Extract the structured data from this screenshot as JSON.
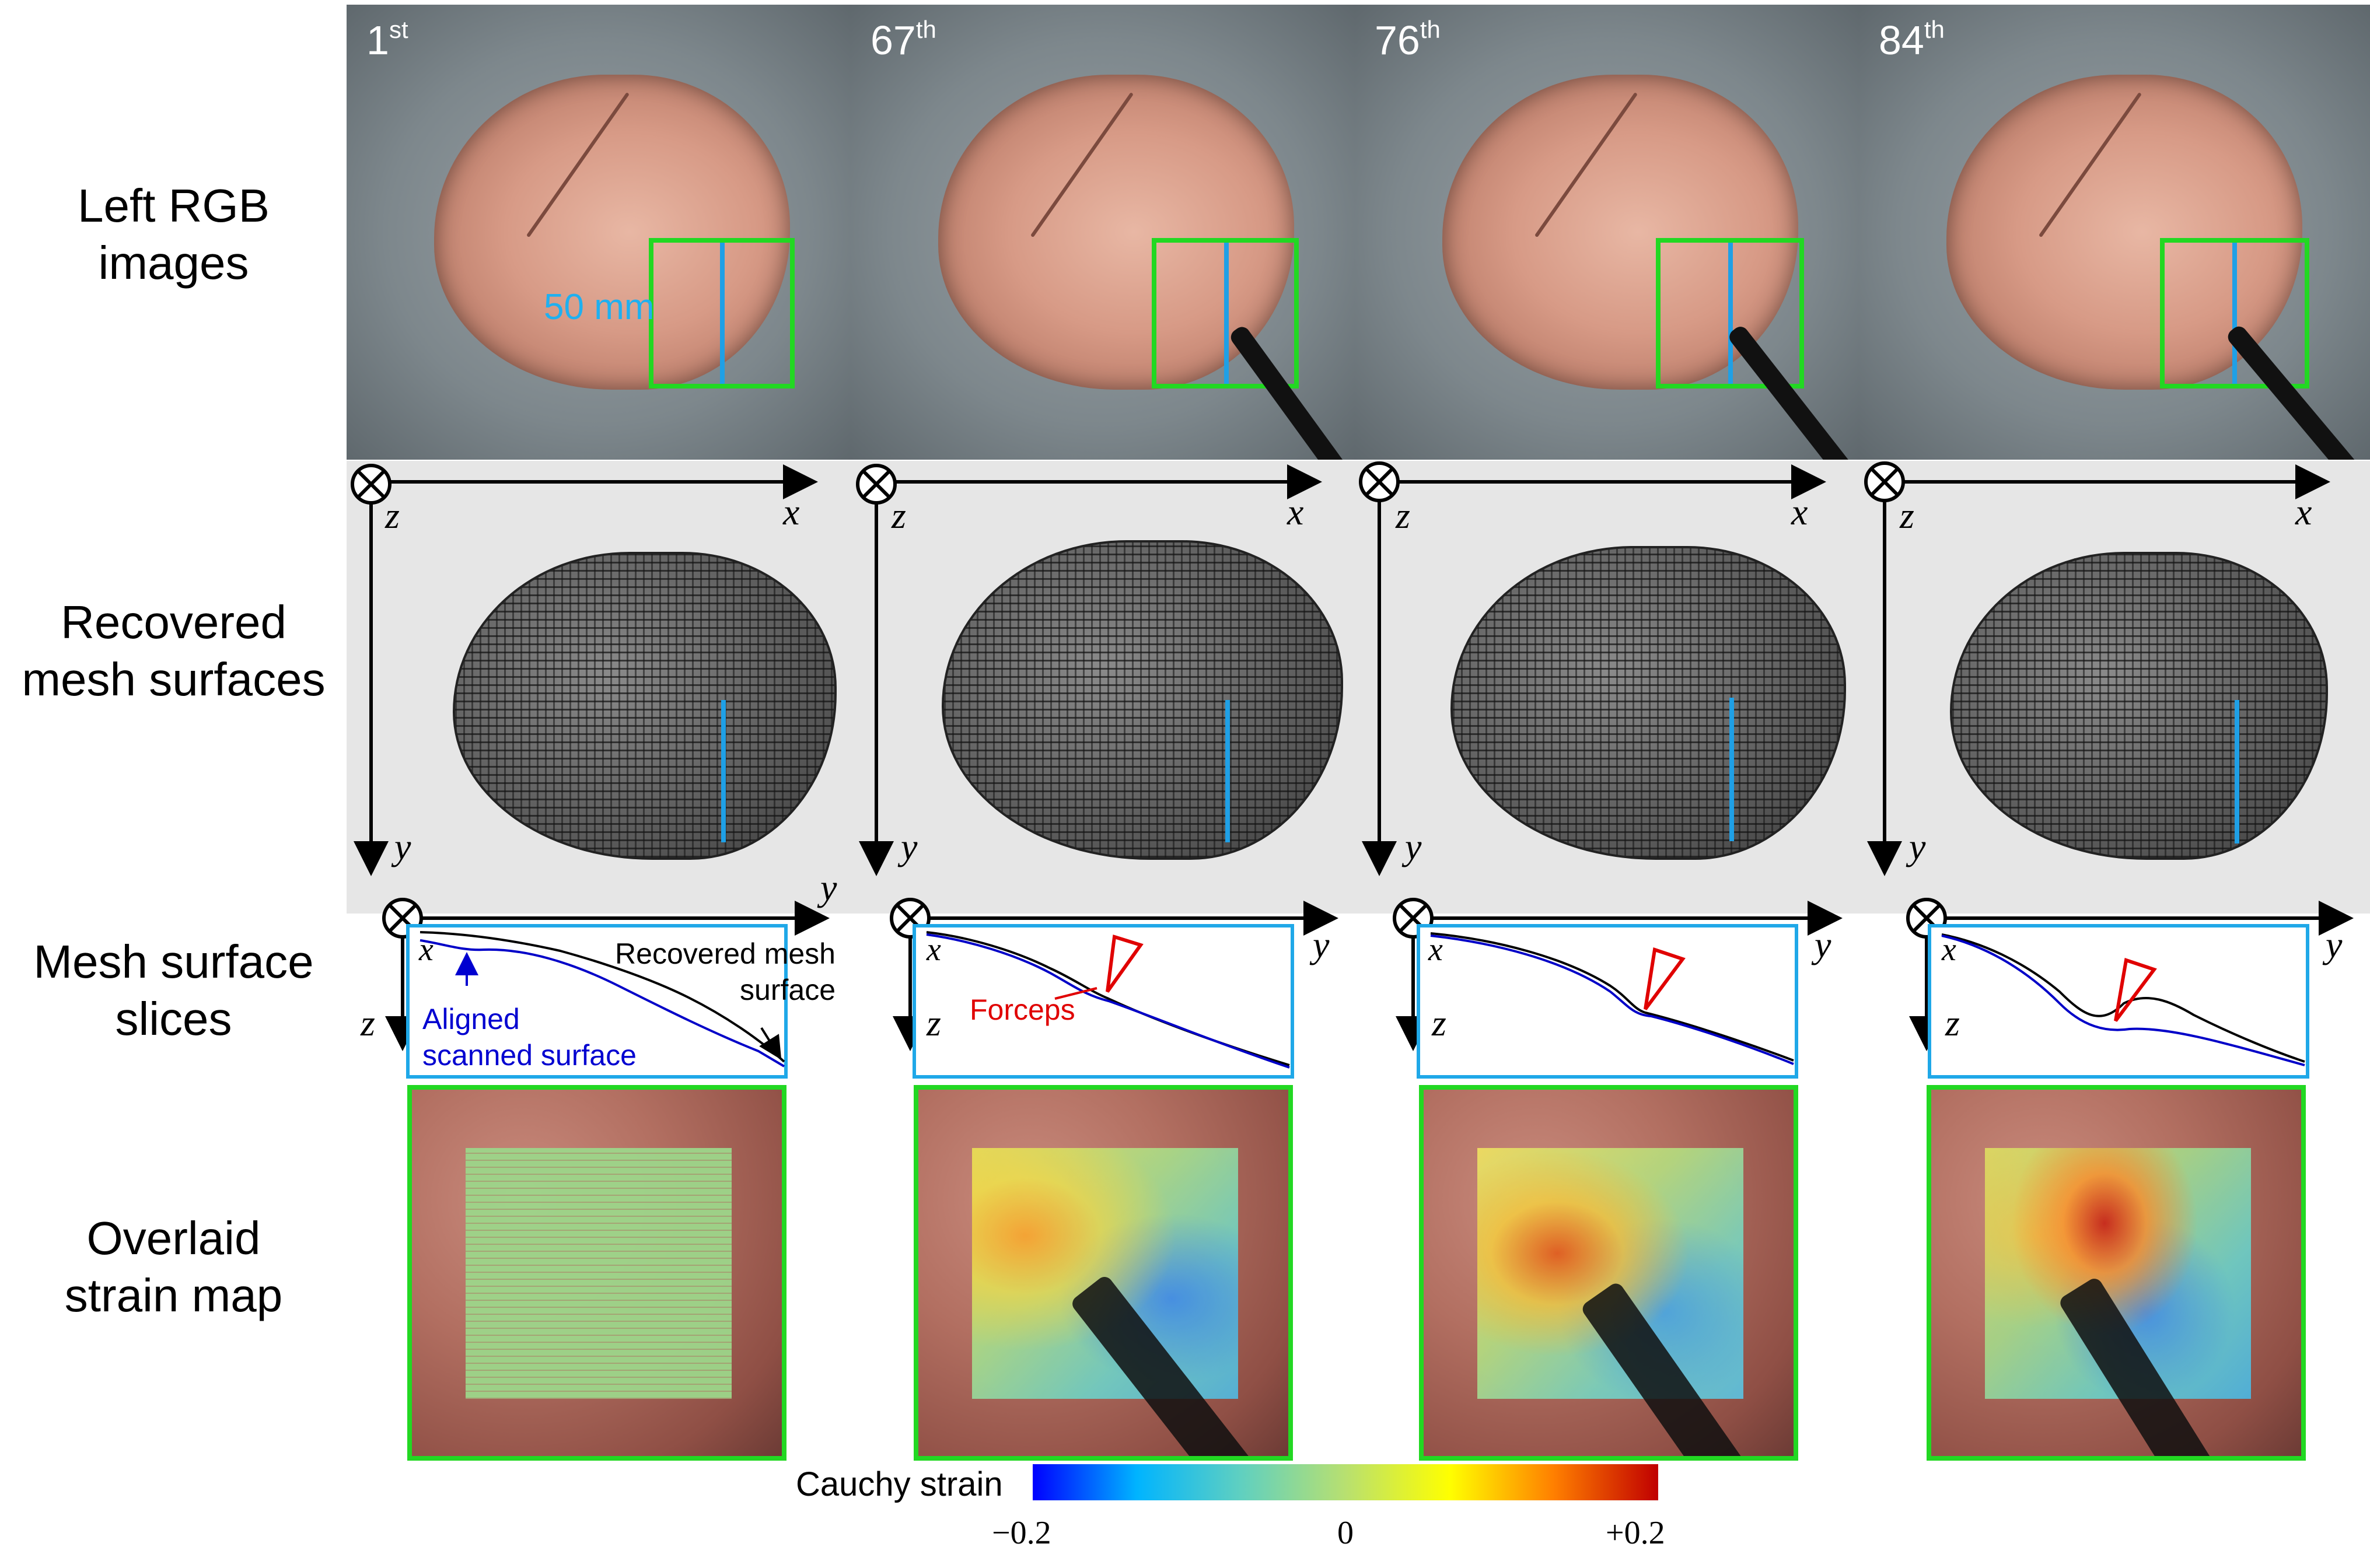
{
  "rows": {
    "rgb": "Left RGB images",
    "mesh": "Recovered mesh surfaces",
    "slices": "Mesh surface slices",
    "strain": "Overlaid strain map"
  },
  "frames": [
    {
      "num": "1",
      "suffix": "st"
    },
    {
      "num": "67",
      "suffix": "th"
    },
    {
      "num": "76",
      "suffix": "th"
    },
    {
      "num": "84",
      "suffix": "th"
    }
  ],
  "annotations": {
    "scale": "50 mm",
    "recovered_line1": "Recovered mesh",
    "recovered_line2": "surface",
    "aligned_line1": "Aligned",
    "aligned_line2": "scanned surface",
    "forceps": "Forceps"
  },
  "axes": {
    "x": "x",
    "y": "y",
    "z": "z"
  },
  "colorbar": {
    "title": "Cauchy strain",
    "min_label": "−0.2",
    "mid_label": "0",
    "max_label": "+0.2",
    "colors": [
      "#0000ff",
      "#00b4ff",
      "#60d0c0",
      "#b8e070",
      "#ffff00",
      "#ff7f00",
      "#c00000"
    ]
  },
  "colors": {
    "roi_box": "#22d822",
    "slice_box": "#1fa8e8",
    "scan_line": "#1fa0e6",
    "aligned_surface": "#0000c8",
    "recovered_surface": "#000000",
    "forceps_annotation": "#e00000"
  }
}
